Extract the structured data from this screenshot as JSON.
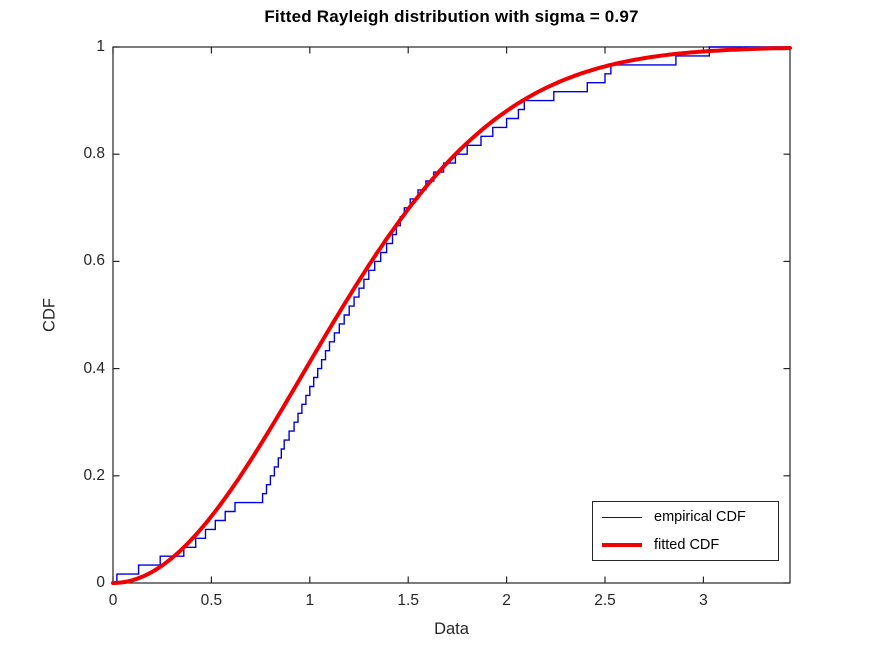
{
  "figure": {
    "background": "#ffffff",
    "axis_color": "#262626",
    "text_color": "#262626"
  },
  "chart_data": {
    "type": "line",
    "title": "Fitted Rayleigh distribution with sigma = 0.97",
    "xlabel": "Data",
    "ylabel": "CDF",
    "xlim": [
      0,
      3.44
    ],
    "ylim": [
      0,
      1
    ],
    "grid": false,
    "x_ticks": {
      "values": [
        0,
        0.5,
        1,
        1.5,
        2,
        2.5,
        3
      ],
      "labels": [
        "0",
        "0.5",
        "1",
        "1.5",
        "2",
        "2.5",
        "3"
      ]
    },
    "y_ticks": {
      "values": [
        0,
        0.2,
        0.4,
        0.6,
        0.8,
        1
      ],
      "labels": [
        "0",
        "0.2",
        "0.4",
        "0.6",
        "0.8",
        "1"
      ]
    },
    "legend": {
      "position": "south-east",
      "entries": [
        {
          "label": "empirical CDF",
          "color": "#0000E6",
          "line_width": 1.5
        },
        {
          "label": "fitted CDF",
          "color": "#F00000",
          "line_width": 4
        }
      ]
    },
    "series": [
      {
        "name": "empirical CDF",
        "render": "stairs-ecdf",
        "color": "#0000E6",
        "line_width": 1.4,
        "n": 60,
        "samples": [
          0.02,
          0.13,
          0.24,
          0.36,
          0.42,
          0.47,
          0.52,
          0.57,
          0.62,
          0.76,
          0.78,
          0.8,
          0.82,
          0.84,
          0.855,
          0.87,
          0.895,
          0.92,
          0.94,
          0.96,
          0.98,
          1.0,
          1.02,
          1.04,
          1.06,
          1.08,
          1.1,
          1.125,
          1.15,
          1.175,
          1.2,
          1.225,
          1.25,
          1.275,
          1.3,
          1.33,
          1.36,
          1.39,
          1.42,
          1.44,
          1.46,
          1.48,
          1.51,
          1.55,
          1.59,
          1.63,
          1.68,
          1.74,
          1.8,
          1.87,
          1.93,
          2.0,
          2.06,
          2.09,
          2.24,
          2.41,
          2.5,
          2.53,
          2.86,
          3.03
        ]
      },
      {
        "name": "fitted CDF",
        "render": "rayleigh-cdf",
        "color": "#F00000",
        "line_width": 4,
        "sigma": 0.97
      }
    ]
  }
}
